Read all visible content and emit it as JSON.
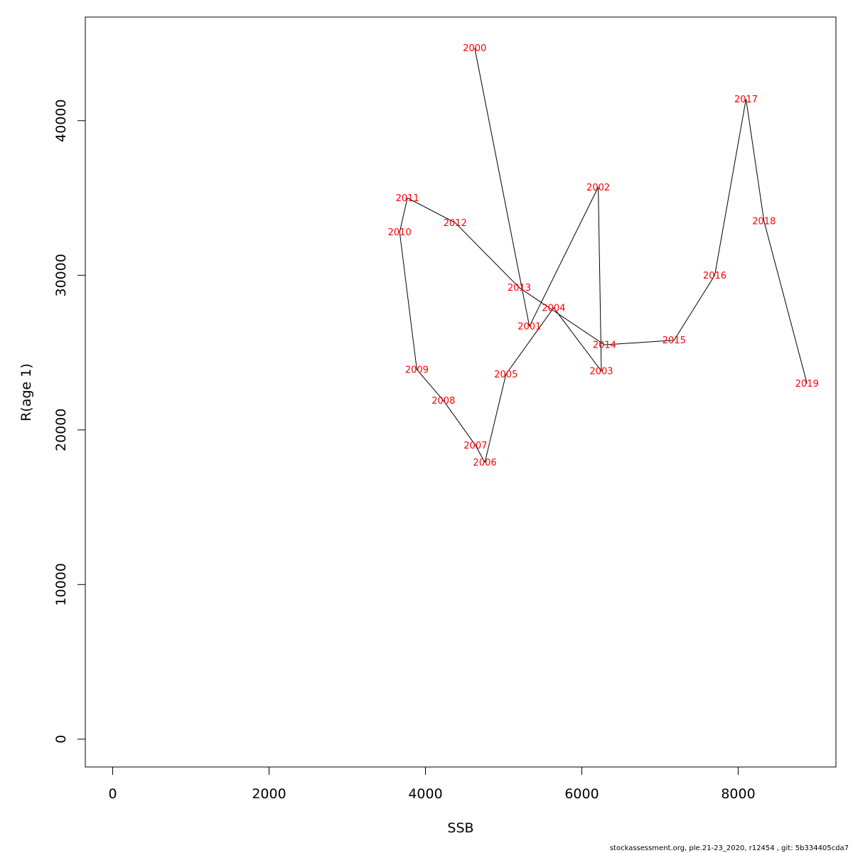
{
  "chart_data": {
    "type": "line",
    "xlabel": "SSB",
    "ylabel": "R(age 1)",
    "xlim": [
      -350,
      9250
    ],
    "ylim": [
      -1800,
      46700
    ],
    "xticks": [
      0,
      2000,
      4000,
      6000,
      8000
    ],
    "yticks": [
      0,
      10000,
      20000,
      30000,
      40000
    ],
    "xtick_labels": [
      "0",
      "2000",
      "4000",
      "6000",
      "8000"
    ],
    "ytick_labels": [
      "0",
      "10000",
      "20000",
      "30000",
      "40000"
    ],
    "grid": false,
    "label_color": "#ff0000",
    "line_color": "#000000",
    "points": [
      {
        "year": "2000",
        "x": 4630,
        "y": 44700
      },
      {
        "year": "2001",
        "x": 5330,
        "y": 26700
      },
      {
        "year": "2002",
        "x": 6210,
        "y": 35700
      },
      {
        "year": "2003",
        "x": 6250,
        "y": 23800
      },
      {
        "year": "2004",
        "x": 5640,
        "y": 27900
      },
      {
        "year": "2005",
        "x": 5030,
        "y": 23600
      },
      {
        "year": "2006",
        "x": 4760,
        "y": 17900
      },
      {
        "year": "2007",
        "x": 4640,
        "y": 19000
      },
      {
        "year": "2008",
        "x": 4230,
        "y": 21900
      },
      {
        "year": "2009",
        "x": 3890,
        "y": 23900
      },
      {
        "year": "2010",
        "x": 3670,
        "y": 32800
      },
      {
        "year": "2011",
        "x": 3770,
        "y": 35000
      },
      {
        "year": "2012",
        "x": 4380,
        "y": 33400
      },
      {
        "year": "2013",
        "x": 5200,
        "y": 29200
      },
      {
        "year": "2014",
        "x": 6290,
        "y": 25500
      },
      {
        "year": "2015",
        "x": 7180,
        "y": 25800
      },
      {
        "year": "2016",
        "x": 7700,
        "y": 30000
      },
      {
        "year": "2017",
        "x": 8100,
        "y": 41400
      },
      {
        "year": "2018",
        "x": 8330,
        "y": 33500
      },
      {
        "year": "2019",
        "x": 8880,
        "y": 23000
      }
    ]
  },
  "footer": {
    "text": "stockassessment.org, ple.21-23_2020, r12454 , git: 5b334405cda7"
  }
}
